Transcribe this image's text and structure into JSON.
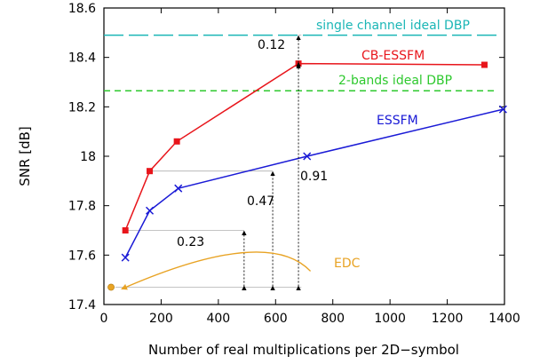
{
  "chart_data": {
    "type": "line",
    "xlabel": "Number of real multiplications per 2D−symbol",
    "ylabel": "SNR [dB]",
    "xlim": [
      0,
      1400
    ],
    "ylim": [
      17.4,
      18.6
    ],
    "xticks": [
      0,
      200,
      400,
      600,
      800,
      1000,
      1200,
      1400
    ],
    "xtick_labels": [
      "0",
      "200",
      "400",
      "600",
      "800",
      "1000",
      "1200",
      "1400"
    ],
    "yticks": [
      17.4,
      17.6,
      17.8,
      18.0,
      18.2,
      18.4,
      18.6
    ],
    "ytick_labels": [
      "17.4",
      "17.6",
      "17.8",
      "18",
      "18.2",
      "18.4",
      "18.6"
    ],
    "grid": false,
    "series": [
      {
        "name": "CB-ESSFM",
        "color": "#e8151b",
        "marker": "square",
        "x": [
          75,
          160,
          255,
          680,
          1330
        ],
        "y": [
          17.7,
          17.94,
          18.06,
          18.375,
          18.37
        ]
      },
      {
        "name": "ESSFM",
        "color": "#1a1ad6",
        "marker": "x",
        "x": [
          75,
          160,
          260,
          710,
          1395
        ],
        "y": [
          17.59,
          17.78,
          17.87,
          18.0,
          18.19
        ]
      },
      {
        "name": "EDC",
        "color": "#e8a324",
        "marker": "circle",
        "x": [
          25
        ],
        "y": [
          17.47
        ]
      }
    ],
    "reference_lines": [
      {
        "name": "single channel ideal DBP",
        "y": 18.49,
        "color": "#1bb6b6",
        "style": "long-dash"
      },
      {
        "name": "2-bands ideal DBP",
        "y": 18.265,
        "color": "#2ec92e",
        "style": "dash"
      }
    ],
    "annotations": [
      {
        "text": "0.12",
        "x": 680,
        "y_from": 18.375,
        "y_to": 18.49
      },
      {
        "text": "0.91",
        "x": 680,
        "y_from": 17.47,
        "y_to": 18.375
      },
      {
        "text": "0.47",
        "x": 590,
        "y_from": 17.47,
        "y_to": 17.94
      },
      {
        "text": "0.23",
        "x": 490,
        "y_from": 17.47,
        "y_to": 17.7
      }
    ],
    "series_label_text": {
      "cb": "CB-ESSFM",
      "essfm": "ESSFM",
      "edc": "EDC",
      "single": "single channel ideal DBP",
      "two": "2-bands ideal DBP"
    },
    "annotation_text": {
      "a012": "0.12",
      "a091": "0.91",
      "a047": "0.47",
      "a023": "0.23"
    }
  }
}
